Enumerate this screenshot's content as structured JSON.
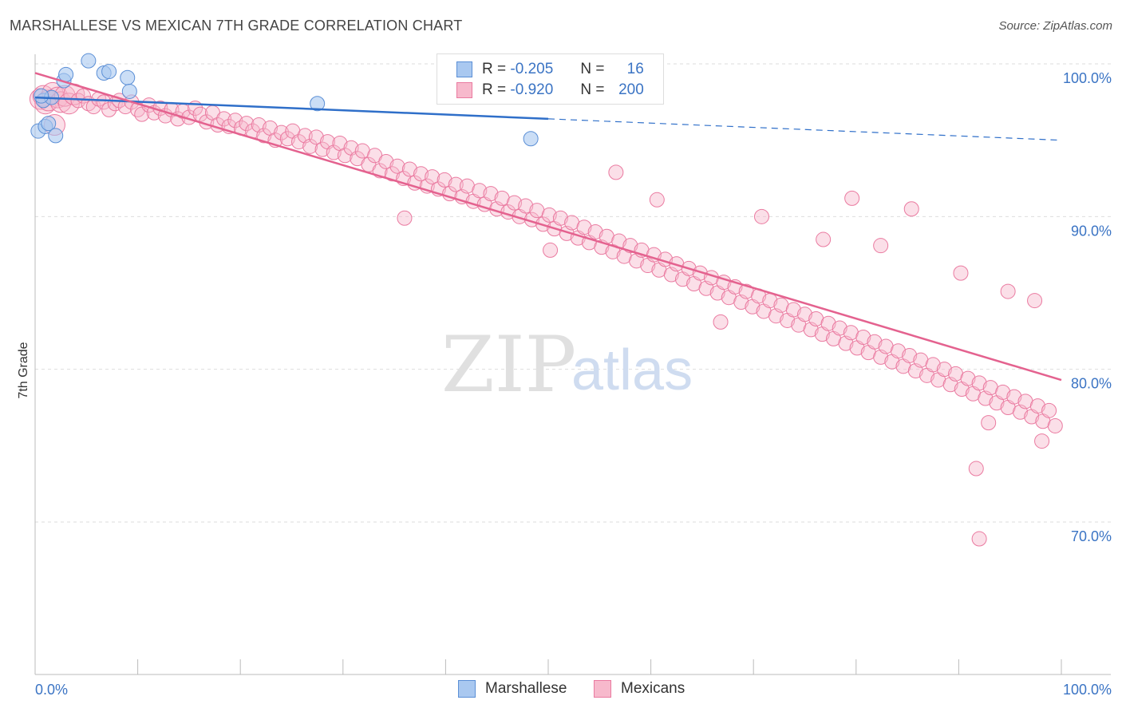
{
  "title": "MARSHALLESE VS MEXICAN 7TH GRADE CORRELATION CHART",
  "source": "Source: ZipAtlas.com",
  "watermark": {
    "zip": "ZIP",
    "atlas": "atlas"
  },
  "colors": {
    "blue_fill": "#a9c8f0",
    "blue_stroke": "#5b8fd6",
    "blue_line": "#2f6fc9",
    "pink_fill": "#f7b9cc",
    "pink_stroke": "#ea7aa0",
    "pink_line": "#e4628f",
    "axis_text": "#3b74c4",
    "grid": "#dddddd"
  },
  "legend": {
    "rows": [
      {
        "r_label": "R =",
        "r_value": "-0.205",
        "n_label": "N =",
        "n_value": "16",
        "series": "Marshallese"
      },
      {
        "r_label": "R =",
        "r_value": "-0.920",
        "n_label": "N =",
        "n_value": "200",
        "series": "Mexicans"
      }
    ]
  },
  "bottom_legend": [
    "Marshallese",
    "Mexicans"
  ],
  "chart_data": {
    "type": "scatter",
    "title": "MARSHALLESE VS MEXICAN 7TH GRADE CORRELATION CHART",
    "xlabel": "",
    "ylabel": "7th Grade",
    "xlim": [
      0,
      100
    ],
    "ylim": [
      60,
      102
    ],
    "x_tick_labels": [
      "0.0%",
      "100.0%"
    ],
    "y_tick_labels": [
      "100.0%",
      "90.0%",
      "80.0%",
      "70.0%"
    ],
    "y_ticks": [
      100,
      90,
      80,
      70
    ],
    "grid": "horizontal dashed",
    "legend_position": "top-center",
    "series": [
      {
        "name": "Marshallese",
        "color": "#5b8fd6",
        "points": [
          [
            0.3,
            95.6
          ],
          [
            0.8,
            97.6
          ],
          [
            1.0,
            95.9
          ],
          [
            1.3,
            96.1
          ],
          [
            1.6,
            97.8
          ],
          [
            2.0,
            95.3
          ],
          [
            2.8,
            98.9
          ],
          [
            3.0,
            99.3
          ],
          [
            5.2,
            100.2
          ],
          [
            6.7,
            99.4
          ],
          [
            7.2,
            99.5
          ],
          [
            9.0,
            99.1
          ],
          [
            9.2,
            98.2
          ],
          [
            27.5,
            97.4
          ],
          [
            48.3,
            95.1
          ],
          [
            0.6,
            97.9
          ]
        ],
        "trend": {
          "x0": 0,
          "y0": 97.8,
          "x1": 100,
          "y1": 95.0,
          "solid_until_x": 50
        }
      },
      {
        "name": "Mexicans",
        "color": "#ea7aa0",
        "points": [
          [
            0.5,
            97.7
          ],
          [
            0.8,
            97.9
          ],
          [
            1.0,
            97.4
          ],
          [
            1.3,
            97.6
          ],
          [
            1.7,
            98.1
          ],
          [
            2.2,
            97.8
          ],
          [
            2.5,
            97.5
          ],
          [
            2.9,
            97.9
          ],
          [
            3.3,
            97.4
          ],
          [
            3.8,
            98.0
          ],
          [
            4.2,
            97.6
          ],
          [
            4.7,
            97.9
          ],
          [
            5.2,
            97.4
          ],
          [
            5.7,
            97.2
          ],
          [
            6.2,
            97.7
          ],
          [
            6.7,
            97.5
          ],
          [
            7.2,
            97.0
          ],
          [
            7.8,
            97.4
          ],
          [
            8.2,
            97.6
          ],
          [
            8.8,
            97.2
          ],
          [
            9.4,
            97.5
          ],
          [
            10.0,
            97.0
          ],
          [
            10.4,
            96.7
          ],
          [
            11.1,
            97.3
          ],
          [
            11.6,
            96.8
          ],
          [
            12.2,
            97.1
          ],
          [
            12.7,
            96.6
          ],
          [
            13.3,
            97.0
          ],
          [
            13.9,
            96.4
          ],
          [
            14.4,
            96.9
          ],
          [
            15.0,
            96.5
          ],
          [
            15.6,
            97.1
          ],
          [
            16.1,
            96.7
          ],
          [
            16.7,
            96.2
          ],
          [
            17.3,
            96.8
          ],
          [
            17.8,
            96.0
          ],
          [
            18.4,
            96.4
          ],
          [
            18.9,
            95.9
          ],
          [
            19.5,
            96.3
          ],
          [
            20.1,
            95.8
          ],
          [
            20.6,
            96.1
          ],
          [
            21.2,
            95.6
          ],
          [
            21.8,
            96.0
          ],
          [
            22.3,
            95.3
          ],
          [
            22.9,
            95.8
          ],
          [
            23.4,
            95.0
          ],
          [
            24.0,
            95.5
          ],
          [
            24.6,
            95.1
          ],
          [
            25.1,
            95.6
          ],
          [
            25.7,
            94.9
          ],
          [
            26.3,
            95.3
          ],
          [
            26.8,
            94.6
          ],
          [
            27.4,
            95.2
          ],
          [
            28.0,
            94.4
          ],
          [
            28.5,
            94.9
          ],
          [
            29.1,
            94.2
          ],
          [
            29.7,
            94.8
          ],
          [
            30.2,
            94.0
          ],
          [
            30.8,
            94.5
          ],
          [
            31.4,
            93.8
          ],
          [
            31.9,
            94.3
          ],
          [
            32.5,
            93.4
          ],
          [
            33.1,
            94.0
          ],
          [
            33.6,
            93.0
          ],
          [
            34.2,
            93.6
          ],
          [
            34.8,
            92.8
          ],
          [
            35.3,
            93.3
          ],
          [
            35.9,
            92.5
          ],
          [
            36.5,
            93.1
          ],
          [
            37.0,
            92.2
          ],
          [
            37.6,
            92.8
          ],
          [
            38.2,
            92.0
          ],
          [
            38.7,
            92.6
          ],
          [
            39.3,
            91.8
          ],
          [
            39.9,
            92.4
          ],
          [
            40.4,
            91.5
          ],
          [
            41.0,
            92.1
          ],
          [
            41.6,
            91.3
          ],
          [
            42.1,
            92.0
          ],
          [
            42.7,
            91.0
          ],
          [
            43.3,
            91.7
          ],
          [
            43.8,
            90.8
          ],
          [
            44.4,
            91.5
          ],
          [
            45.0,
            90.5
          ],
          [
            45.5,
            91.2
          ],
          [
            46.1,
            90.3
          ],
          [
            46.7,
            90.9
          ],
          [
            47.2,
            90.0
          ],
          [
            47.8,
            90.7
          ],
          [
            48.4,
            89.8
          ],
          [
            48.9,
            90.4
          ],
          [
            49.5,
            89.5
          ],
          [
            50.1,
            90.1
          ],
          [
            50.6,
            89.2
          ],
          [
            51.2,
            89.9
          ],
          [
            51.8,
            88.9
          ],
          [
            52.3,
            89.6
          ],
          [
            52.9,
            88.6
          ],
          [
            53.5,
            89.3
          ],
          [
            54.0,
            88.3
          ],
          [
            54.6,
            89.0
          ],
          [
            55.2,
            88.0
          ],
          [
            55.7,
            88.7
          ],
          [
            56.3,
            87.7
          ],
          [
            56.9,
            88.4
          ],
          [
            57.4,
            87.4
          ],
          [
            58.0,
            88.1
          ],
          [
            58.6,
            87.1
          ],
          [
            59.1,
            87.8
          ],
          [
            59.7,
            86.8
          ],
          [
            60.3,
            87.5
          ],
          [
            60.8,
            86.5
          ],
          [
            61.4,
            87.2
          ],
          [
            62.0,
            86.2
          ],
          [
            62.5,
            86.9
          ],
          [
            63.1,
            85.9
          ],
          [
            63.7,
            86.6
          ],
          [
            64.2,
            85.6
          ],
          [
            64.8,
            86.3
          ],
          [
            65.4,
            85.3
          ],
          [
            65.9,
            86.0
          ],
          [
            66.5,
            85.0
          ],
          [
            67.1,
            85.7
          ],
          [
            67.6,
            84.7
          ],
          [
            68.2,
            85.4
          ],
          [
            68.8,
            84.4
          ],
          [
            69.3,
            85.1
          ],
          [
            69.9,
            84.1
          ],
          [
            70.5,
            84.8
          ],
          [
            71.0,
            83.8
          ],
          [
            71.6,
            84.5
          ],
          [
            72.2,
            83.5
          ],
          [
            72.7,
            84.2
          ],
          [
            73.3,
            83.2
          ],
          [
            73.9,
            83.9
          ],
          [
            74.4,
            82.9
          ],
          [
            75.0,
            83.6
          ],
          [
            75.6,
            82.6
          ],
          [
            76.1,
            83.3
          ],
          [
            76.7,
            82.3
          ],
          [
            77.3,
            83.0
          ],
          [
            77.8,
            82.0
          ],
          [
            78.4,
            82.7
          ],
          [
            79.0,
            81.7
          ],
          [
            79.5,
            82.4
          ],
          [
            80.1,
            81.4
          ],
          [
            80.7,
            82.1
          ],
          [
            81.2,
            81.1
          ],
          [
            81.8,
            81.8
          ],
          [
            82.4,
            80.8
          ],
          [
            82.9,
            81.5
          ],
          [
            83.5,
            80.5
          ],
          [
            84.1,
            81.2
          ],
          [
            84.6,
            80.2
          ],
          [
            85.2,
            80.9
          ],
          [
            85.8,
            79.9
          ],
          [
            86.3,
            80.6
          ],
          [
            86.9,
            79.6
          ],
          [
            87.5,
            80.3
          ],
          [
            88.0,
            79.3
          ],
          [
            88.6,
            80.0
          ],
          [
            89.2,
            79.0
          ],
          [
            89.7,
            79.7
          ],
          [
            90.3,
            78.7
          ],
          [
            90.9,
            79.4
          ],
          [
            91.4,
            78.4
          ],
          [
            92.0,
            79.1
          ],
          [
            92.6,
            78.1
          ],
          [
            93.1,
            78.8
          ],
          [
            93.7,
            77.8
          ],
          [
            94.3,
            78.5
          ],
          [
            94.8,
            77.5
          ],
          [
            95.4,
            78.2
          ],
          [
            96.0,
            77.2
          ],
          [
            96.5,
            77.9
          ],
          [
            97.1,
            76.9
          ],
          [
            97.7,
            77.6
          ],
          [
            98.2,
            76.6
          ],
          [
            98.8,
            77.3
          ],
          [
            99.4,
            76.3
          ],
          [
            1.9,
            96.0
          ],
          [
            36.0,
            89.9
          ],
          [
            56.6,
            92.9
          ],
          [
            60.6,
            91.1
          ],
          [
            70.8,
            90.0
          ],
          [
            79.6,
            91.2
          ],
          [
            85.4,
            90.5
          ],
          [
            76.8,
            88.5
          ],
          [
            82.4,
            88.1
          ],
          [
            90.2,
            86.3
          ],
          [
            94.8,
            85.1
          ],
          [
            97.4,
            84.5
          ],
          [
            91.7,
            73.5
          ],
          [
            92.9,
            76.5
          ],
          [
            98.1,
            75.3
          ],
          [
            92.0,
            68.9
          ],
          [
            50.2,
            87.8
          ],
          [
            66.8,
            83.1
          ]
        ],
        "trend": {
          "x0": 0,
          "y0": 99.4,
          "x1": 100,
          "y1": 79.3
        }
      }
    ]
  }
}
